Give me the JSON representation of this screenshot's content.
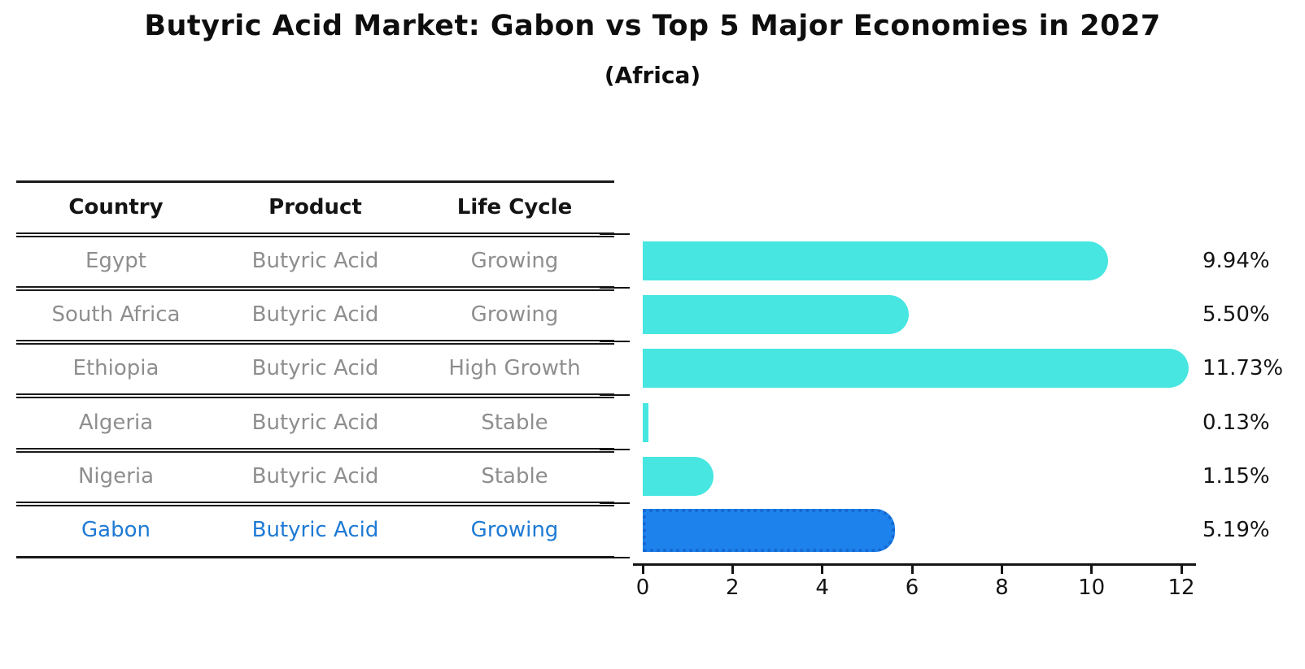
{
  "title": "Butyric Acid Market: Gabon vs Top 5 Major Economies in 2027",
  "subtitle": "(Africa)",
  "table": {
    "columns": [
      "Country",
      "Product",
      "Life Cycle"
    ],
    "rows": [
      {
        "country": "Egypt",
        "product": "Butyric Acid",
        "life_cycle": "Growing",
        "highlight": false
      },
      {
        "country": "South Africa",
        "product": "Butyric Acid",
        "life_cycle": "Growing",
        "highlight": false
      },
      {
        "country": "Ethiopia",
        "product": "Butyric Acid",
        "life_cycle": "High Growth",
        "highlight": false
      },
      {
        "country": "Algeria",
        "product": "Butyric Acid",
        "life_cycle": "Stable",
        "highlight": false
      },
      {
        "country": "Nigeria",
        "product": "Butyric Acid",
        "life_cycle": "Stable",
        "highlight": false
      },
      {
        "country": "Gabon",
        "product": "Butyric Acid",
        "life_cycle": "Growing",
        "highlight": true
      }
    ]
  },
  "chart_data": {
    "type": "bar",
    "orientation": "horizontal",
    "title": "Butyric Acid Market: Gabon vs Top 5 Major Economies in 2027 (Africa)",
    "categories": [
      "Egypt",
      "South Africa",
      "Ethiopia",
      "Algeria",
      "Nigeria",
      "Gabon"
    ],
    "values": [
      9.94,
      5.5,
      11.73,
      0.13,
      1.15,
      5.19
    ],
    "value_labels": [
      "9.94%",
      "5.50%",
      "11.73%",
      "0.13%",
      "1.15%",
      "5.19%"
    ],
    "xlim": [
      0,
      12
    ],
    "xticks": [
      0,
      2,
      4,
      6,
      8,
      10,
      12
    ],
    "grid": false,
    "legend": "none",
    "bar_color": "#47e6e1",
    "highlight_color": "#1e82ec",
    "highlight_index": 5
  },
  "colors": {
    "text_dark": "#141414",
    "text_muted": "#8e8e8e",
    "highlight_text": "#1e7ad4",
    "bar_cyan": "#47e6e1",
    "bar_blue": "#1e82ec",
    "bar_blue_border": "#1668d0"
  }
}
